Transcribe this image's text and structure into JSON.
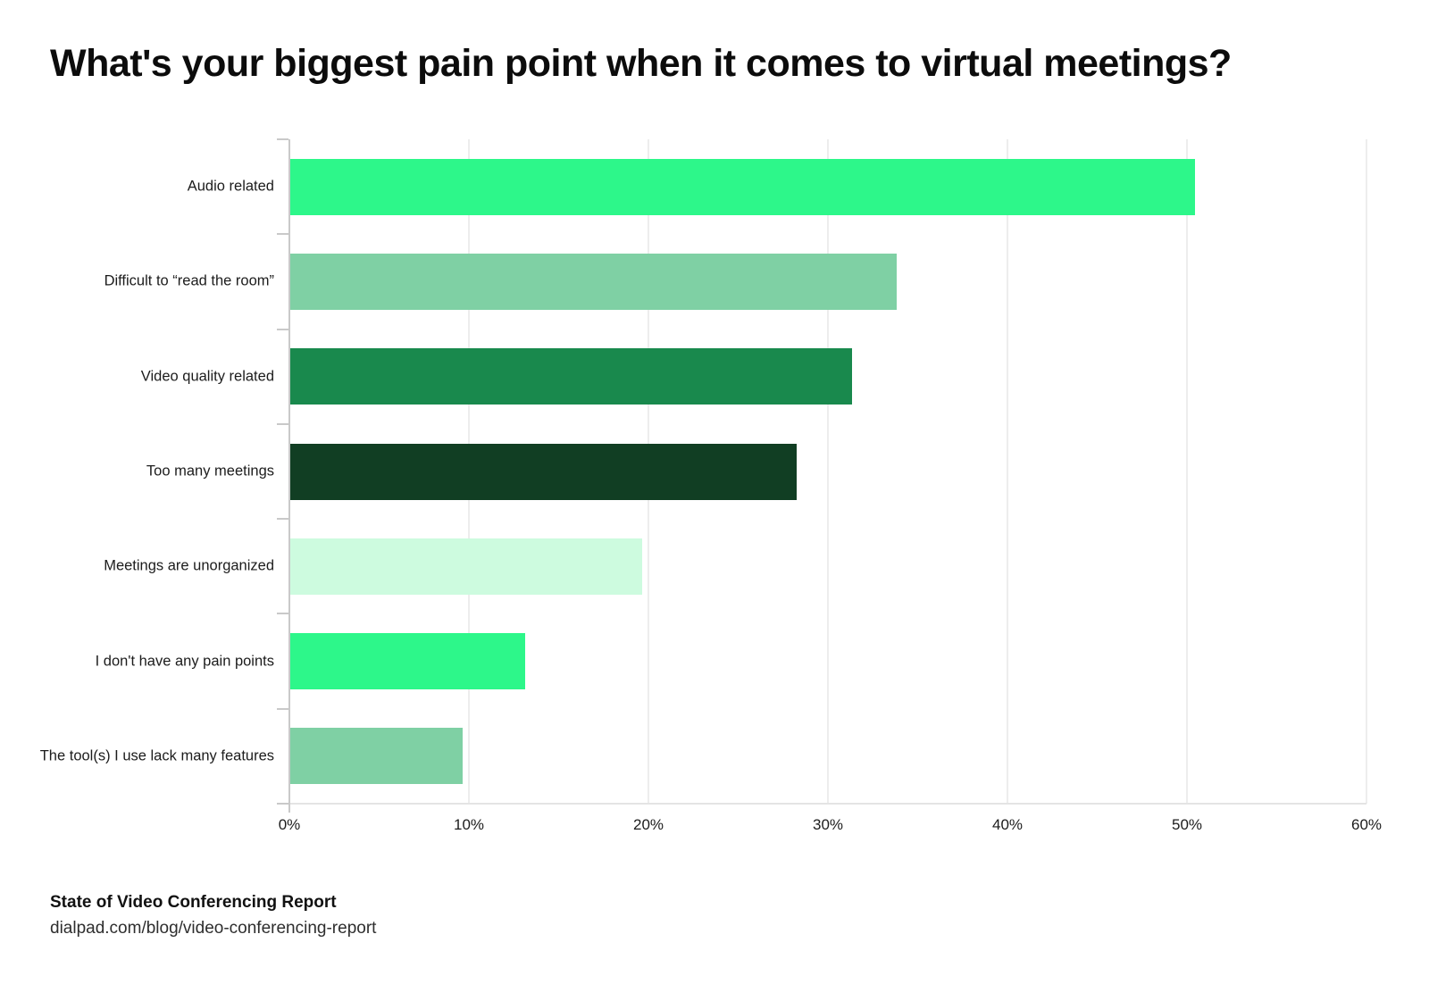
{
  "title": "What's your biggest pain point when it comes to virtual meetings?",
  "footer": {
    "line1": "State of Video Conferencing Report",
    "line2": "dialpad.com/blog/video-conferencing-report"
  },
  "chart_data": {
    "type": "bar",
    "orientation": "horizontal",
    "title": "What's your biggest pain point when it comes to virtual meetings?",
    "categories": [
      "Audio related",
      "Difficult to “read the room”",
      "Video quality related",
      "Too many meetings",
      "Meetings are unorganized",
      "I don't have any pain points",
      "The tool(s) I use lack many features"
    ],
    "values": [
      50.4,
      33.8,
      31.3,
      28.2,
      19.6,
      13.1,
      9.6
    ],
    "unit": "%",
    "bar_colors": [
      "#2df78a",
      "#7fd0a4",
      "#19894d",
      "#113e23",
      "#cdfbdf",
      "#2df78a",
      "#7fd0a4"
    ],
    "x_tick_labels": [
      "0%",
      "10%",
      "20%",
      "30%",
      "40%",
      "50%",
      "60%"
    ],
    "x_tick_values": [
      0,
      10,
      20,
      30,
      40,
      50,
      60
    ],
    "xlim": [
      0,
      60
    ],
    "xlabel": "",
    "ylabel": "",
    "grid": "vertical-only",
    "legend": "none",
    "grid_color": "#ededed",
    "axis_color": "#c9c9c9"
  }
}
